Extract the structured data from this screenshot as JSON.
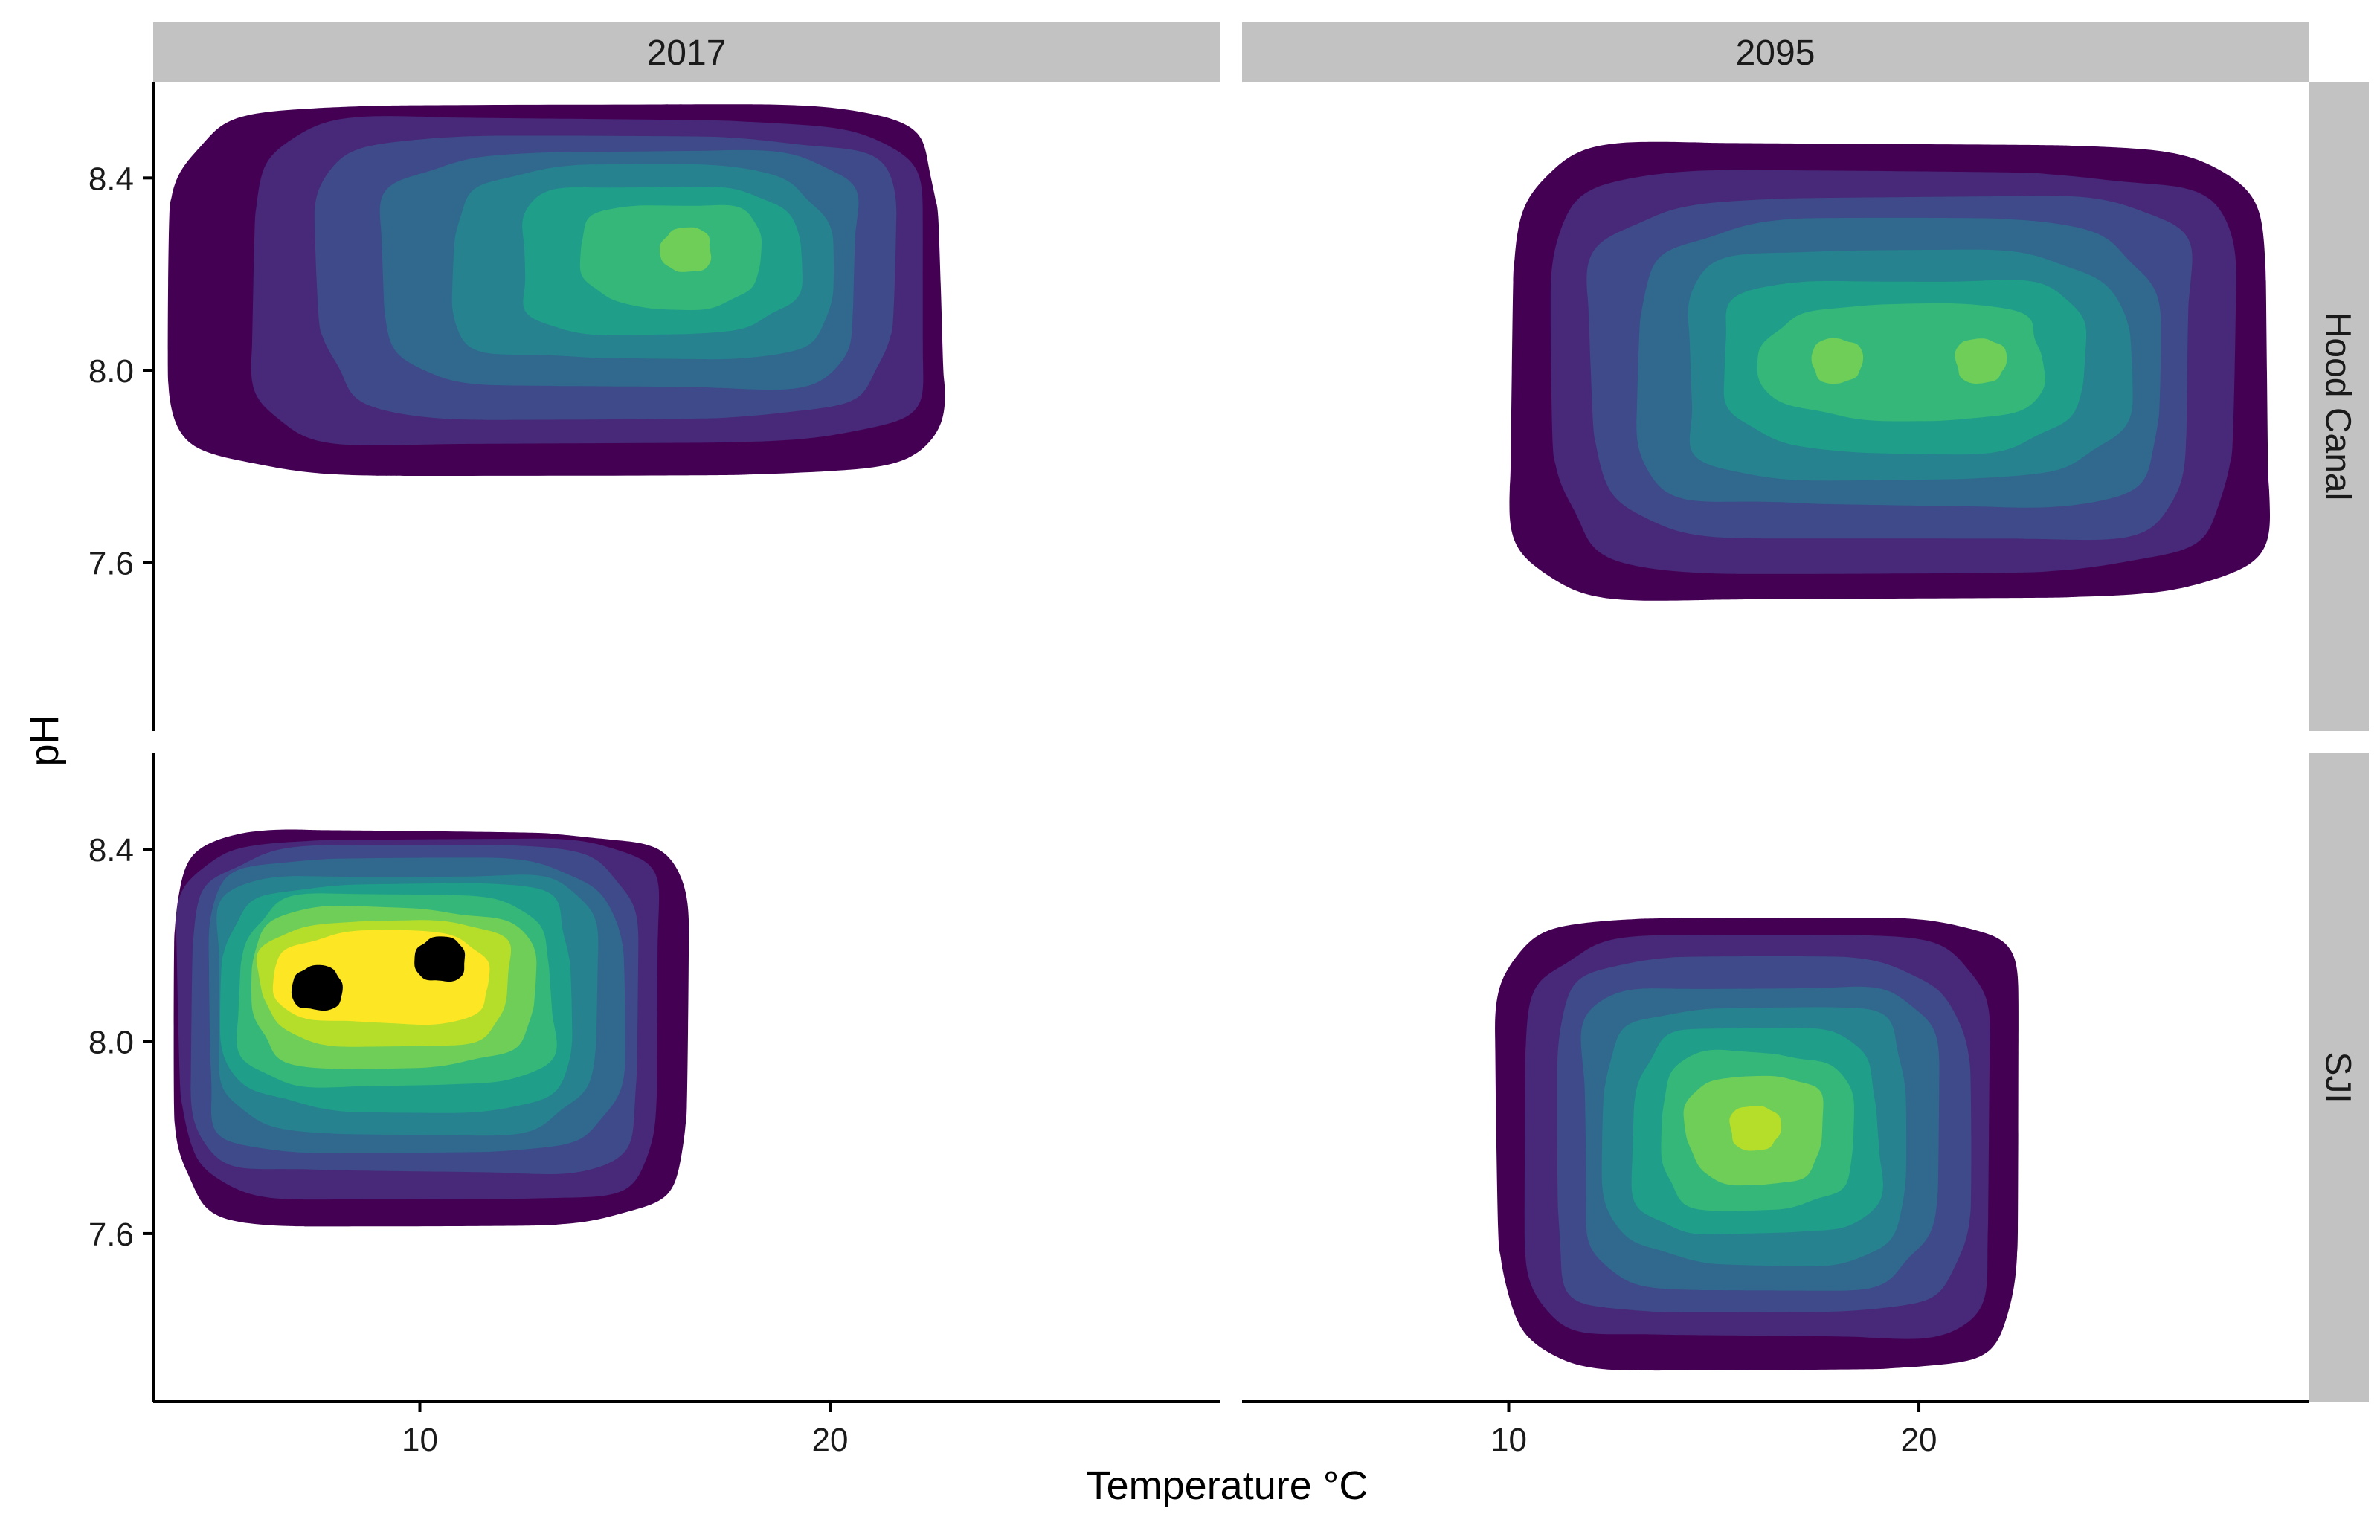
{
  "chart_data": {
    "type": "density_2d_filled_facet",
    "xlabel": "Temperature °C",
    "ylabel": "pH",
    "col_facets": [
      "2017",
      "2095"
    ],
    "row_facets": [
      "Hood Canal",
      "SJI"
    ],
    "x_ticks": [
      "10",
      "20"
    ],
    "y_ticks": [
      "7.6",
      "8.0",
      "8.4"
    ],
    "xlim": [
      3.5,
      29.5
    ],
    "ylim": [
      7.25,
      8.6
    ],
    "legend": "none",
    "grid": false,
    "palette": [
      "#440154",
      "#482878",
      "#3e4a89",
      "#31688e",
      "#26828e",
      "#1f9e89",
      "#35b779",
      "#6ece58",
      "#b5de2b",
      "#fde725"
    ],
    "panels": [
      {
        "year": "2017",
        "site": "Hood Canal",
        "x_range": [
          4.0,
          22.8
        ],
        "y_range": [
          7.78,
          8.55
        ],
        "levels": 7,
        "peaks": [
          {
            "x": 16.5,
            "y": 8.25
          }
        ]
      },
      {
        "year": "2095",
        "site": "Hood Canal",
        "x_range": [
          10.0,
          28.5
        ],
        "y_range": [
          7.52,
          8.47
        ],
        "levels": 7,
        "peaks": [
          {
            "x": 18.0,
            "y": 8.02
          },
          {
            "x": 21.5,
            "y": 8.02
          }
        ]
      },
      {
        "year": "2017",
        "site": "SJI",
        "x_range": [
          4.0,
          16.5
        ],
        "y_range": [
          7.62,
          8.44
        ],
        "levels": 10,
        "peaks": [
          {
            "x": 10.5,
            "y": 8.17
          },
          {
            "x": 7.5,
            "y": 8.11
          }
        ]
      },
      {
        "year": "2095",
        "site": "SJI",
        "x_range": [
          9.8,
          22.5
        ],
        "y_range": [
          7.32,
          8.26
        ],
        "levels": 8,
        "peaks": [
          {
            "x": 16.0,
            "y": 7.82
          }
        ]
      }
    ]
  }
}
